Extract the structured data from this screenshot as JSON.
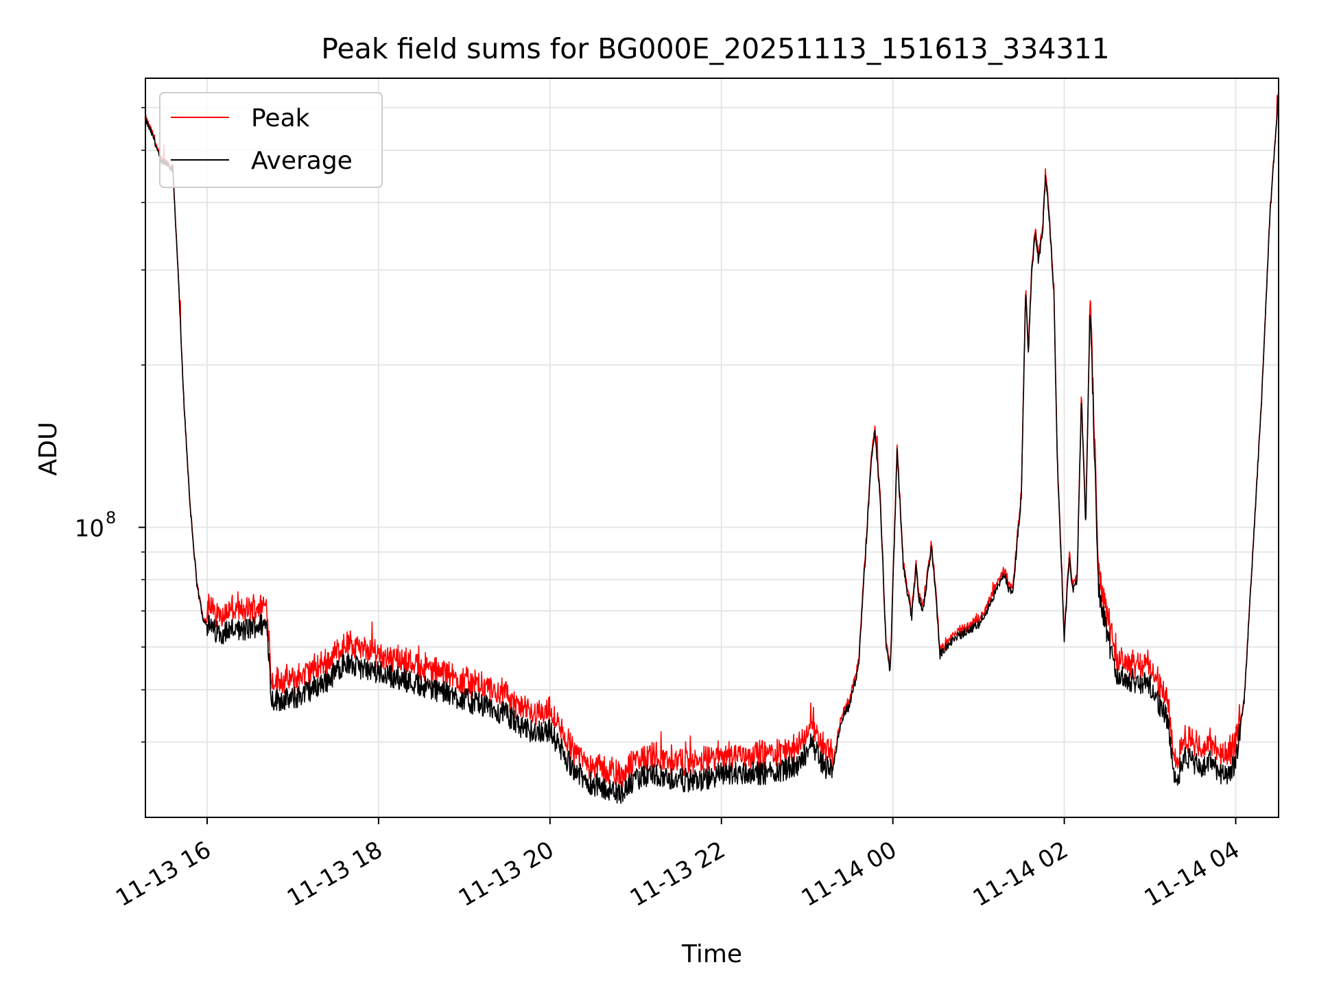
{
  "chart_data": {
    "type": "line",
    "title": "Peak field sums for BG000E_20251113_151613_334311",
    "xlabel": "Time",
    "ylabel": "ADU",
    "yscale": "log",
    "ylim": [
      29000000,
      680000000
    ],
    "xlim_hours": [
      -0.72,
      12.5
    ],
    "grid": true,
    "legend_placement": "upper-left",
    "x_ticks": [
      {
        "label": "11-13 16",
        "hour": 0
      },
      {
        "label": "11-13 18",
        "hour": 2
      },
      {
        "label": "11-13 20",
        "hour": 4
      },
      {
        "label": "11-13 22",
        "hour": 6
      },
      {
        "label": "11-14 00",
        "hour": 8
      },
      {
        "label": "11-14 02",
        "hour": 10
      },
      {
        "label": "11-14 04",
        "hour": 12
      }
    ],
    "y_major_tick": {
      "value": 100000000,
      "base": "10",
      "exponent": "8"
    },
    "y_minor_ticks": [
      40000000,
      50000000,
      60000000,
      70000000,
      80000000,
      90000000,
      200000000,
      300000000,
      400000000,
      500000000,
      600000000
    ],
    "series": [
      {
        "name": "Peak",
        "color": "#ff0000"
      },
      {
        "name": "Average",
        "color": "#000000"
      }
    ],
    "average_series_hours": [
      -0.72,
      -0.62,
      -0.55,
      -0.45,
      -0.4,
      -0.33,
      -0.28,
      -0.2,
      -0.12,
      -0.05,
      0.0,
      0.1,
      0.2,
      0.3,
      0.4,
      0.5,
      0.6,
      0.7,
      0.75,
      0.78,
      0.85,
      1.0,
      1.2,
      1.4,
      1.6,
      1.75,
      2.0,
      2.5,
      3.0,
      3.5,
      3.7,
      4.0,
      4.2,
      4.4,
      4.6,
      4.8,
      5.0,
      5.2,
      5.5,
      5.8,
      6.0,
      6.5,
      6.9,
      7.05,
      7.2,
      7.3,
      7.4,
      7.5,
      7.6,
      7.7,
      7.75,
      7.79,
      7.85,
      7.92,
      7.97,
      8.05,
      8.12,
      8.22,
      8.27,
      8.3,
      8.35,
      8.4,
      8.45,
      8.5,
      8.55,
      8.7,
      9.0,
      9.1,
      9.2,
      9.3,
      9.35,
      9.4,
      9.5,
      9.55,
      9.58,
      9.62,
      9.66,
      9.7,
      9.75,
      9.78,
      9.82,
      9.88,
      9.92,
      10.0,
      10.03,
      10.06,
      10.1,
      10.15,
      10.2,
      10.25,
      10.3,
      10.4,
      10.6,
      10.8,
      11.0,
      11.2,
      11.3,
      11.4,
      11.6,
      11.7,
      11.9,
      12.0,
      12.1,
      12.2,
      12.3,
      12.4,
      12.5
    ],
    "average_series_values": [
      570000000,
      525000000,
      480000000,
      470000000,
      460000000,
      280000000,
      180000000,
      110000000,
      78000000,
      68000000,
      66000000,
      64000000,
      64000000,
      65000000,
      64000000,
      65000000,
      66000000,
      66000000,
      48000000,
      48000000,
      48000000,
      48000000,
      50000000,
      52000000,
      56000000,
      55000000,
      54000000,
      51000000,
      48000000,
      45000000,
      42000000,
      42000000,
      37000000,
      34000000,
      33000000,
      32000000,
      34000000,
      35000000,
      34000000,
      34000000,
      35000000,
      35000000,
      36000000,
      40000000,
      36000000,
      36000000,
      44000000,
      47000000,
      55000000,
      100000000,
      135000000,
      150000000,
      115000000,
      60000000,
      54000000,
      140000000,
      85000000,
      68000000,
      85000000,
      74000000,
      70000000,
      80000000,
      92000000,
      75000000,
      58000000,
      62000000,
      66000000,
      70000000,
      76000000,
      82000000,
      77000000,
      76000000,
      115000000,
      280000000,
      210000000,
      300000000,
      350000000,
      310000000,
      360000000,
      450000000,
      380000000,
      270000000,
      130000000,
      62000000,
      75000000,
      88000000,
      76000000,
      80000000,
      175000000,
      100000000,
      260000000,
      77000000,
      53000000,
      52000000,
      51000000,
      44000000,
      33500000,
      38000000,
      35500000,
      37000000,
      34000000,
      37000000,
      48000000,
      90000000,
      170000000,
      380000000,
      640000000
    ]
  }
}
